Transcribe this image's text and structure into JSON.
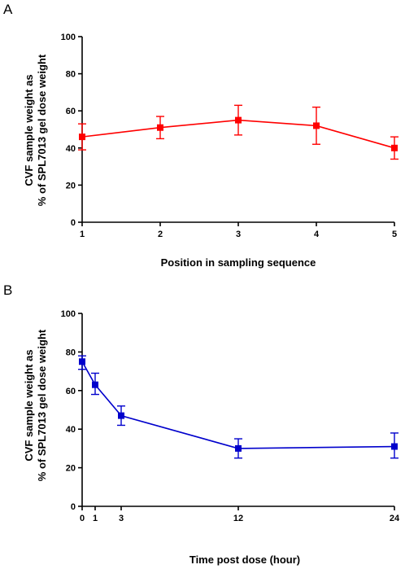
{
  "chart_data": [
    {
      "panel": "A",
      "type": "line",
      "title": "",
      "xlabel": "Position in sampling sequence",
      "ylabel": [
        "CVF sample weight as",
        "% of SPL7013 gel dose weight"
      ],
      "xlim": [
        1,
        5
      ],
      "ylim": [
        0,
        100
      ],
      "x_ticks": [
        1,
        2,
        3,
        4,
        5
      ],
      "y_ticks": [
        0,
        20,
        40,
        60,
        80,
        100
      ],
      "color": "#ff0000",
      "marker": "square",
      "series": [
        {
          "x": [
            1,
            2,
            3,
            4,
            5
          ],
          "values": [
            46,
            51,
            55,
            52,
            40
          ],
          "err_low": [
            39,
            45,
            47,
            42,
            34
          ],
          "err_high": [
            53,
            57,
            63,
            62,
            46
          ]
        }
      ]
    },
    {
      "panel": "B",
      "type": "line",
      "title": "",
      "xlabel": "Time post dose (hour)",
      "ylabel": [
        "CVF sample weight as",
        "% of SPL7013 gel dose weight"
      ],
      "xlim": [
        0,
        24
      ],
      "ylim": [
        0,
        100
      ],
      "x_ticks": [
        0,
        1,
        3,
        12,
        24
      ],
      "y_ticks": [
        0,
        20,
        40,
        60,
        80,
        100
      ],
      "color": "#0000cc",
      "marker": "square",
      "series": [
        {
          "x": [
            0,
            1,
            3,
            12,
            24
          ],
          "values": [
            75,
            63,
            47,
            30,
            31
          ],
          "err_low": [
            71,
            58,
            42,
            25,
            25
          ],
          "err_high": [
            78,
            69,
            52,
            35,
            38
          ]
        }
      ]
    }
  ]
}
